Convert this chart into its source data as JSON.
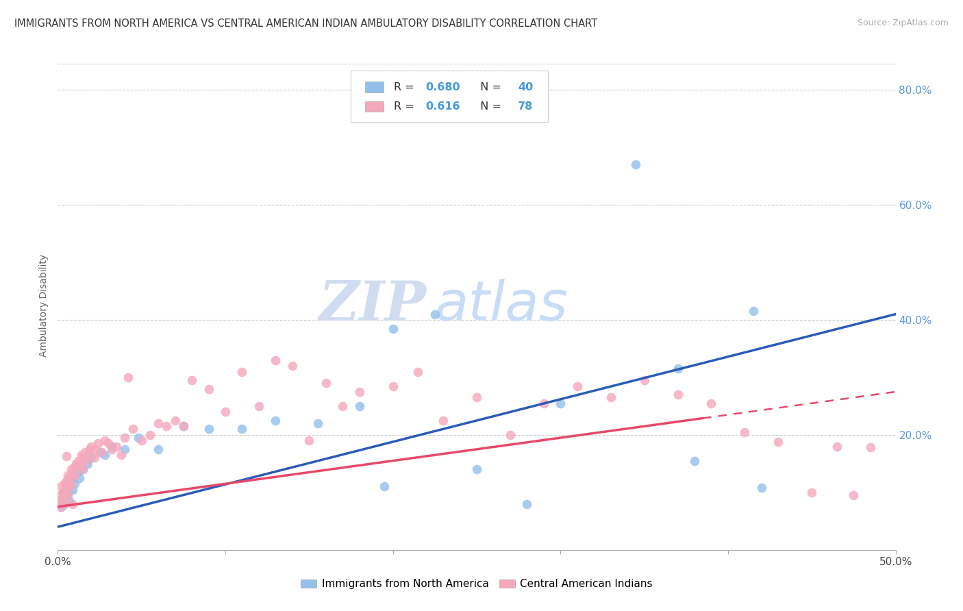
{
  "title": "IMMIGRANTS FROM NORTH AMERICA VS CENTRAL AMERICAN INDIAN AMBULATORY DISABILITY CORRELATION CHART",
  "source": "Source: ZipAtlas.com",
  "ylabel": "Ambulatory Disability",
  "xlim": [
    0.0,
    0.5
  ],
  "ylim": [
    0.0,
    0.85
  ],
  "legend_label1": "Immigrants from North America",
  "legend_label2": "Central American Indians",
  "R1": 0.68,
  "N1": 40,
  "R2": 0.616,
  "N2": 78,
  "color_blue": "#92C0EC",
  "color_pink": "#F5A8BC",
  "line_color_blue": "#2B5BB8",
  "line_color_pink": "#E8486A",
  "background_color": "#FFFFFF",
  "watermark_zip": "ZIP",
  "watermark_atlas": "atlas",
  "blue_line_start_y": 0.04,
  "blue_line_end_y": 0.41,
  "pink_line_start_y": 0.075,
  "pink_line_end_y": 0.275
}
